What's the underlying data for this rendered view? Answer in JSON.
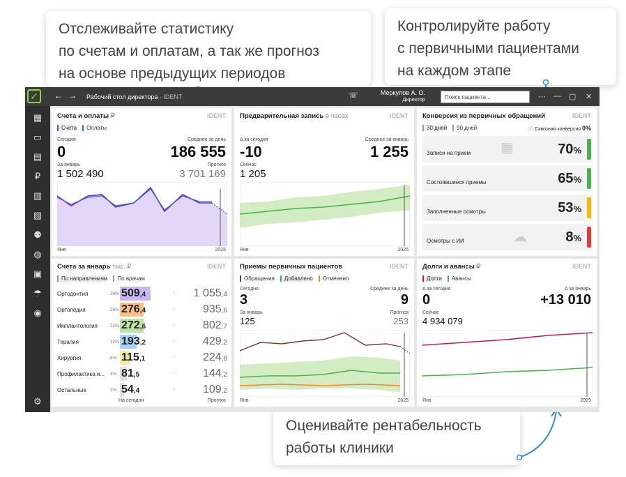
{
  "callouts": {
    "c1": "Отслеживайте статистику\nпо счетам и оплатам, а так же прогноз\nна основе предыдущих периодов",
    "c2": "Контролируйте работу\nс первичными пациентами\nна каждом этапе",
    "c3": "Оценивайте рентабельность\nработы клиники"
  },
  "titlebar": {
    "title": "Рабочий стол директора",
    "app": "- IDENT",
    "user": "Меркулов А. О.",
    "role": "Директор",
    "search_placeholder": "Поиск пациента..."
  },
  "ident": "IDENT",
  "p1": {
    "title": "Счета и оплаты",
    "currency": "₽",
    "legend": [
      "Счета",
      "Оплаты"
    ],
    "today_label": "Сегодня",
    "today": "0",
    "avg_label": "Среднее за день",
    "avg": "186 555",
    "jan_label": "За январь",
    "jan": "1 502 490",
    "fc_label": "Прогноз",
    "fc": "3 701 169",
    "x0": "Янв",
    "x1": "2025"
  },
  "p2": {
    "title": "Предварительная запись",
    "subtitle": "в часах",
    "d_label": "Δ за сегодня",
    "d": "-10",
    "avg_label": "Среднее за январь",
    "avg": "1 255",
    "now_label": "Сейчас",
    "now": "1 205",
    "x0": "Янв",
    "x1": "2025"
  },
  "p3": {
    "title": "Конверсия из первичных обращений",
    "tabs": [
      "30 дней",
      "90 дней"
    ],
    "through": "Сквозная конверсия",
    "through_val": "0%",
    "rows": [
      {
        "label": "Записи на прием",
        "val": "70",
        "color": "#4caf50"
      },
      {
        "label": "Состоявшиеся приемы",
        "val": "65",
        "color": "#4caf50"
      },
      {
        "label": "Заполненные осмотры",
        "val": "53",
        "color": "#f5b800"
      },
      {
        "label": "Осмотры с ИИ",
        "val": "8",
        "color": "#e53935"
      }
    ],
    "pct": "%"
  },
  "p4": {
    "title": "Счета за январь",
    "subtitle": "тыс. ₽",
    "tabs": [
      "По направлениям",
      "По врачам"
    ],
    "rows": [
      {
        "name": "Ортодонтия",
        "p": "29%",
        "a": "509",
        "af": ",4",
        "b": "1 055",
        "bf": ",4",
        "c": "#c9b7ef"
      },
      {
        "name": "Ортопедия",
        "p": "25%",
        "a": "276",
        "af": ",4",
        "b": "935",
        "bf": ",6",
        "c": "#f6c08f"
      },
      {
        "name": "Имплантология",
        "p": "22%",
        "a": "272",
        "af": ",6",
        "b": "802",
        "bf": ",7",
        "c": "#bfe3a7"
      },
      {
        "name": "Терапия",
        "p": "12%",
        "a": "193",
        "af": ",2",
        "b": "429",
        "bf": ",2",
        "c": "#a9d3f2"
      },
      {
        "name": "Хирургия",
        "p": "6%",
        "a": "115",
        "af": ",1",
        "b": "224",
        "bf": ",8",
        "c": "#f3eaa5"
      },
      {
        "name": "Профилактика и...",
        "p": "4%",
        "a": "81",
        "af": ",5",
        "b": "144",
        "bf": ",2",
        "c": "#e0e0e0"
      },
      {
        "name": "Остальные",
        "p": "3%",
        "a": "54",
        "af": ",4",
        "b": "109",
        "bf": ",2",
        "c": "#e0e0e0"
      }
    ],
    "f1": "На сегодня",
    "f2": "Прогноз"
  },
  "p5": {
    "title": "Приемы первичных пациентов",
    "legend": [
      "Обращения",
      "Добавлено",
      "Отменено"
    ],
    "today_label": "Сегодня",
    "today": "3",
    "avg_label": "Среднее за день",
    "avg": "9",
    "jan_label": "За январь",
    "jan": "125",
    "fc_label": "Прогноз",
    "fc": "253",
    "x0": "Янв",
    "x1": "2025"
  },
  "p6": {
    "title": "Долги и авансы",
    "currency": "₽",
    "legend": [
      "Долги",
      "Авансы"
    ],
    "d_label": "Δ за сегодня",
    "d": "0",
    "dj_label": "Δ за январь",
    "dj": "+13 010",
    "now_label": "Сейчас",
    "now": "4 934 079",
    "x0": "Янв",
    "x1": "2025"
  }
}
